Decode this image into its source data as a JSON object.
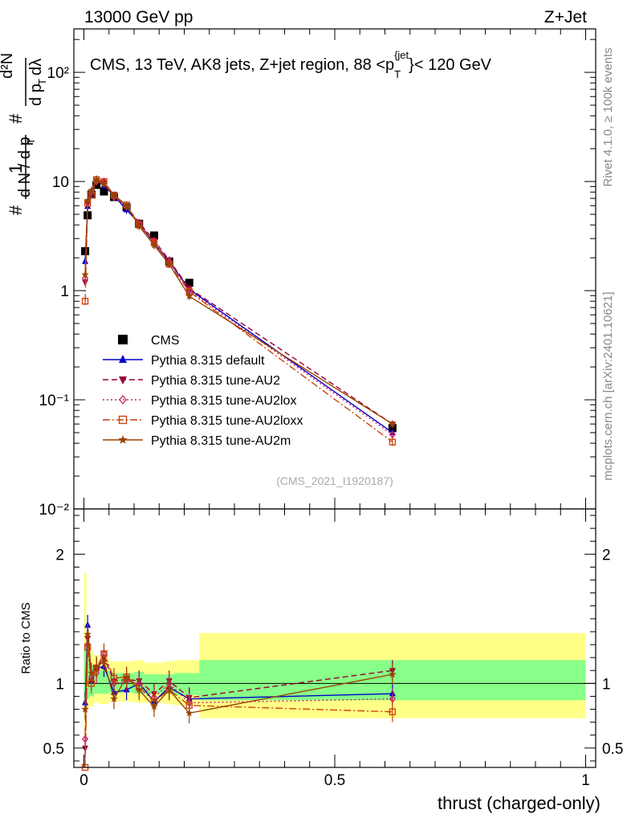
{
  "header": {
    "left": "13000 GeV pp",
    "right": "Z+Jet"
  },
  "side_labels": {
    "rivet": "Rivet 4.1.0, ≥ 100k events",
    "mcplots": "mcplots.cern.ch [arXiv:2401.10621]"
  },
  "chart_data": [
    {
      "type": "line",
      "panel": "main",
      "title": "CMS, 13 TeV, AK8 jets, Z+jet region, 88 <p_T^{jet}< 120 GeV",
      "title_parts": {
        "main": "CMS, 13 TeV, AK8 jets, Z+jet region, 88 <p",
        "sub": "T",
        "sup": "{jet",
        "close": "}",
        "rest": "< 120 GeV"
      },
      "ylabel": "1/(dN/dp_T) d²N/(dp_T dλ)",
      "ylabel_parts": {
        "outer_num": "1",
        "outer_den": "d N / d p",
        "outer_sub": "T",
        "inner_num": "d²N",
        "inner_den": "d p",
        "inner_sub": "T",
        "inner_tail": "dλ",
        "hash": "#"
      },
      "yscale": "log",
      "ylim": [
        0.01,
        250
      ],
      "xlim": [
        -0.02,
        1.02
      ],
      "yticks": [
        {
          "v": 0.01,
          "label": "10⁻²"
        },
        {
          "v": 0.1,
          "label": "10⁻¹"
        },
        {
          "v": 1,
          "label": "1"
        },
        {
          "v": 10,
          "label": "10"
        },
        {
          "v": 100,
          "label": "10²"
        }
      ],
      "watermark": "(CMS_2021_I1920187)",
      "legend_position": "center-left",
      "series": [
        {
          "name": "CMS",
          "color": "#000000",
          "marker": "square",
          "line": "none",
          "x": [
            0.0025,
            0.0075,
            0.015,
            0.025,
            0.04,
            0.06,
            0.085,
            0.11,
            0.14,
            0.17,
            0.21,
            0.615
          ],
          "y": [
            2.3,
            4.9,
            7.6,
            9.3,
            8.1,
            7.2,
            5.8,
            4.1,
            3.2,
            1.85,
            1.18,
            0.055
          ]
        },
        {
          "name": "Pythia 8.315 default",
          "color": "#0000cc",
          "marker": "triangle-up",
          "line": "solid",
          "x": [
            0.0025,
            0.0075,
            0.015,
            0.025,
            0.04,
            0.06,
            0.085,
            0.11,
            0.14,
            0.17,
            0.21,
            0.615
          ],
          "y": [
            1.85,
            5.9,
            7.9,
            10.2,
            9.2,
            7.4,
            5.5,
            4.15,
            2.7,
            1.85,
            1.03,
            0.05
          ]
        },
        {
          "name": "Pythia 8.315 tune-AU2",
          "color": "#990033",
          "marker": "triangle-down",
          "line": "dashed",
          "x": [
            0.0025,
            0.0075,
            0.015,
            0.025,
            0.04,
            0.06,
            0.085,
            0.11,
            0.14,
            0.17,
            0.21,
            0.615
          ],
          "y": [
            1.2,
            6.5,
            7.8,
            10.2,
            9.8,
            7.5,
            5.9,
            4.2,
            2.9,
            1.9,
            1.05,
            0.06
          ]
        },
        {
          "name": "Pythia 8.315 tune-AU2lox",
          "color": "#cc2266",
          "marker": "diamond-open",
          "line": "dotted",
          "x": [
            0.0025,
            0.0075,
            0.015,
            0.025,
            0.04,
            0.06,
            0.085,
            0.11,
            0.14,
            0.17,
            0.21,
            0.615
          ],
          "y": [
            1.3,
            6.4,
            8.0,
            10.0,
            10.0,
            7.2,
            5.9,
            4.1,
            2.85,
            1.85,
            1.0,
            0.048
          ]
        },
        {
          "name": "Pythia 8.315 tune-AU2loxx",
          "color": "#cc4411",
          "marker": "square-open",
          "line": "dashdot",
          "x": [
            0.0025,
            0.0075,
            0.015,
            0.025,
            0.04,
            0.06,
            0.085,
            0.11,
            0.14,
            0.17,
            0.21,
            0.615
          ],
          "y": [
            0.8,
            6.3,
            7.5,
            10.4,
            10.0,
            7.5,
            6.1,
            4.0,
            2.75,
            1.75,
            0.98,
            0.041
          ]
        },
        {
          "name": "Pythia 8.315 tune-AU2m",
          "color": "#994400",
          "marker": "star",
          "line": "solid",
          "x": [
            0.0025,
            0.0075,
            0.015,
            0.025,
            0.04,
            0.06,
            0.085,
            0.11,
            0.14,
            0.17,
            0.21,
            0.615
          ],
          "y": [
            1.4,
            6.7,
            8.3,
            10.5,
            9.5,
            7.5,
            6.0,
            3.9,
            2.6,
            1.75,
            0.89,
            0.06
          ]
        }
      ]
    },
    {
      "type": "line",
      "panel": "ratio",
      "ylabel": "Ratio to CMS",
      "xlabel": "thrust (charged-only)",
      "yscale": "linear",
      "ylim": [
        0.35,
        2.35
      ],
      "xlim": [
        -0.02,
        1.02
      ],
      "yticks": [
        {
          "v": 0.5,
          "label": "0.5"
        },
        {
          "v": 1,
          "label": "1"
        },
        {
          "v": 2,
          "label": "2"
        }
      ],
      "xticks": [
        {
          "v": 0,
          "label": "0"
        },
        {
          "v": 0.5,
          "label": "0.5"
        },
        {
          "v": 1,
          "label": "1"
        }
      ],
      "bands": [
        {
          "x0": 0.0,
          "x1": 0.005,
          "lo2": 0.6,
          "hi2": 1.85,
          "lo1": 0.78,
          "hi1": 1.3
        },
        {
          "x0": 0.005,
          "x1": 0.01,
          "lo2": 0.8,
          "hi2": 1.35,
          "lo1": 0.88,
          "hi1": 1.2
        },
        {
          "x0": 0.01,
          "x1": 0.02,
          "lo2": 0.82,
          "hi2": 1.25,
          "lo1": 0.9,
          "hi1": 1.14
        },
        {
          "x0": 0.02,
          "x1": 0.03,
          "lo2": 0.85,
          "hi2": 1.22,
          "lo1": 0.92,
          "hi1": 1.12
        },
        {
          "x0": 0.03,
          "x1": 0.05,
          "lo2": 0.84,
          "hi2": 1.2,
          "lo1": 0.92,
          "hi1": 1.1
        },
        {
          "x0": 0.05,
          "x1": 0.07,
          "lo2": 0.86,
          "hi2": 1.17,
          "lo1": 0.93,
          "hi1": 1.08
        },
        {
          "x0": 0.07,
          "x1": 0.1,
          "lo2": 0.86,
          "hi2": 1.17,
          "lo1": 0.93,
          "hi1": 1.08
        },
        {
          "x0": 0.1,
          "x1": 0.12,
          "lo2": 0.85,
          "hi2": 1.18,
          "lo1": 0.92,
          "hi1": 1.09
        },
        {
          "x0": 0.12,
          "x1": 0.16,
          "lo2": 0.85,
          "hi2": 1.16,
          "lo1": 0.92,
          "hi1": 1.07
        },
        {
          "x0": 0.16,
          "x1": 0.18,
          "lo2": 0.84,
          "hi2": 1.17,
          "lo1": 0.92,
          "hi1": 1.07
        },
        {
          "x0": 0.18,
          "x1": 0.23,
          "lo2": 0.83,
          "hi2": 1.18,
          "lo1": 0.91,
          "hi1": 1.08
        },
        {
          "x0": 0.23,
          "x1": 1.0,
          "lo2": 0.73,
          "hi2": 1.39,
          "lo1": 0.87,
          "hi1": 1.18
        }
      ],
      "series": [
        {
          "name": "Pythia 8.315 default",
          "color": "#0000cc",
          "marker": "triangle-up",
          "line": "solid",
          "x": [
            0.0025,
            0.0075,
            0.015,
            0.025,
            0.04,
            0.06,
            0.085,
            0.11,
            0.14,
            0.17,
            0.21,
            0.615
          ],
          "y": [
            0.85,
            1.45,
            1.02,
            1.12,
            1.13,
            0.93,
            0.95,
            1.0,
            0.86,
            0.97,
            0.88,
            0.92
          ]
        },
        {
          "name": "Pythia 8.315 tune-AU2",
          "color": "#990033",
          "marker": "triangle-down",
          "line": "dashed",
          "x": [
            0.0025,
            0.0075,
            0.015,
            0.025,
            0.04,
            0.06,
            0.085,
            0.11,
            0.14,
            0.17,
            0.21,
            0.615
          ],
          "y": [
            0.5,
            1.35,
            1.02,
            1.12,
            1.2,
            1.02,
            1.03,
            1.02,
            0.92,
            1.02,
            0.89,
            1.1
          ]
        },
        {
          "name": "Pythia 8.315 tune-AU2lox",
          "color": "#cc2266",
          "marker": "diamond-open",
          "line": "dotted",
          "x": [
            0.0025,
            0.0075,
            0.015,
            0.025,
            0.04,
            0.06,
            0.085,
            0.11,
            0.14,
            0.17,
            0.21,
            0.615
          ],
          "y": [
            0.57,
            1.3,
            1.05,
            1.08,
            1.23,
            1.0,
            1.02,
            1.0,
            0.89,
            1.0,
            0.85,
            0.88
          ]
        },
        {
          "name": "Pythia 8.315 tune-AU2loxx",
          "color": "#cc4411",
          "marker": "square-open",
          "line": "dashdot",
          "x": [
            0.0025,
            0.0075,
            0.015,
            0.025,
            0.04,
            0.06,
            0.085,
            0.11,
            0.14,
            0.17,
            0.21,
            0.615
          ],
          "y": [
            0.35,
            1.28,
            1.0,
            1.12,
            1.23,
            1.04,
            1.05,
            0.97,
            0.86,
            0.95,
            0.83,
            0.78
          ]
        },
        {
          "name": "Pythia 8.315 tune-AU2m",
          "color": "#994400",
          "marker": "star",
          "line": "solid",
          "x": [
            0.0025,
            0.0075,
            0.015,
            0.025,
            0.04,
            0.06,
            0.085,
            0.11,
            0.14,
            0.17,
            0.21,
            0.615
          ],
          "y": [
            0.8,
            1.38,
            1.08,
            1.13,
            1.17,
            0.88,
            1.05,
            0.95,
            0.82,
            0.95,
            0.77,
            1.07
          ]
        }
      ]
    }
  ]
}
